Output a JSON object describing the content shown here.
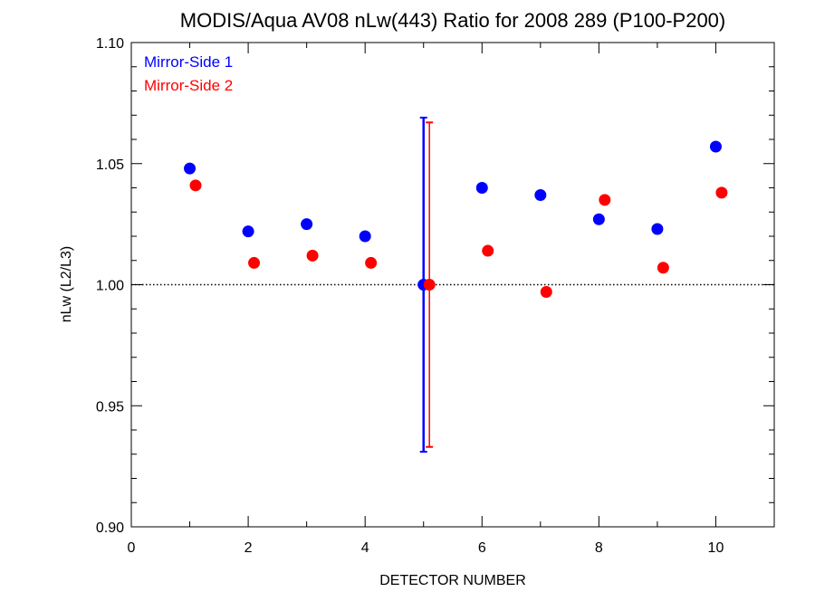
{
  "chart_data": {
    "type": "scatter",
    "title": "MODIS/Aqua AV08 nLw(443) Ratio for 2008 289 (P100-P200)",
    "xlabel": "DETECTOR NUMBER",
    "ylabel": "nLw (L2/L3)",
    "xlim": [
      0,
      11
    ],
    "ylim": [
      0.9,
      1.1
    ],
    "xticks": [
      "0",
      "2",
      "4",
      "6",
      "8",
      "10"
    ],
    "yticks": [
      "0.90",
      "0.95",
      "1.00",
      "1.05",
      "1.10"
    ],
    "reference_line": {
      "y": 1.0,
      "style": "dotted",
      "color": "#000000"
    },
    "legend_position": "top-left",
    "series": [
      {
        "name": "Mirror-Side 1",
        "color": "#0000ff",
        "x": [
          1,
          2,
          3,
          4,
          5,
          6,
          7,
          8,
          9,
          10
        ],
        "y": [
          1.048,
          1.022,
          1.025,
          1.02,
          1.0,
          1.04,
          1.037,
          1.027,
          1.023,
          1.057
        ],
        "error_bar": {
          "x": 5,
          "low": 0.931,
          "high": 1.069
        }
      },
      {
        "name": "Mirror-Side 2",
        "color": "#ff0000",
        "x": [
          1.1,
          2.1,
          3.1,
          4.1,
          5.1,
          6.1,
          7.1,
          8.1,
          9.1,
          10.1
        ],
        "y": [
          1.041,
          1.009,
          1.012,
          1.009,
          1.0,
          1.014,
          0.997,
          1.035,
          1.007,
          1.038
        ],
        "error_bar": {
          "x": 5.1,
          "low": 0.933,
          "high": 1.067
        }
      }
    ]
  }
}
